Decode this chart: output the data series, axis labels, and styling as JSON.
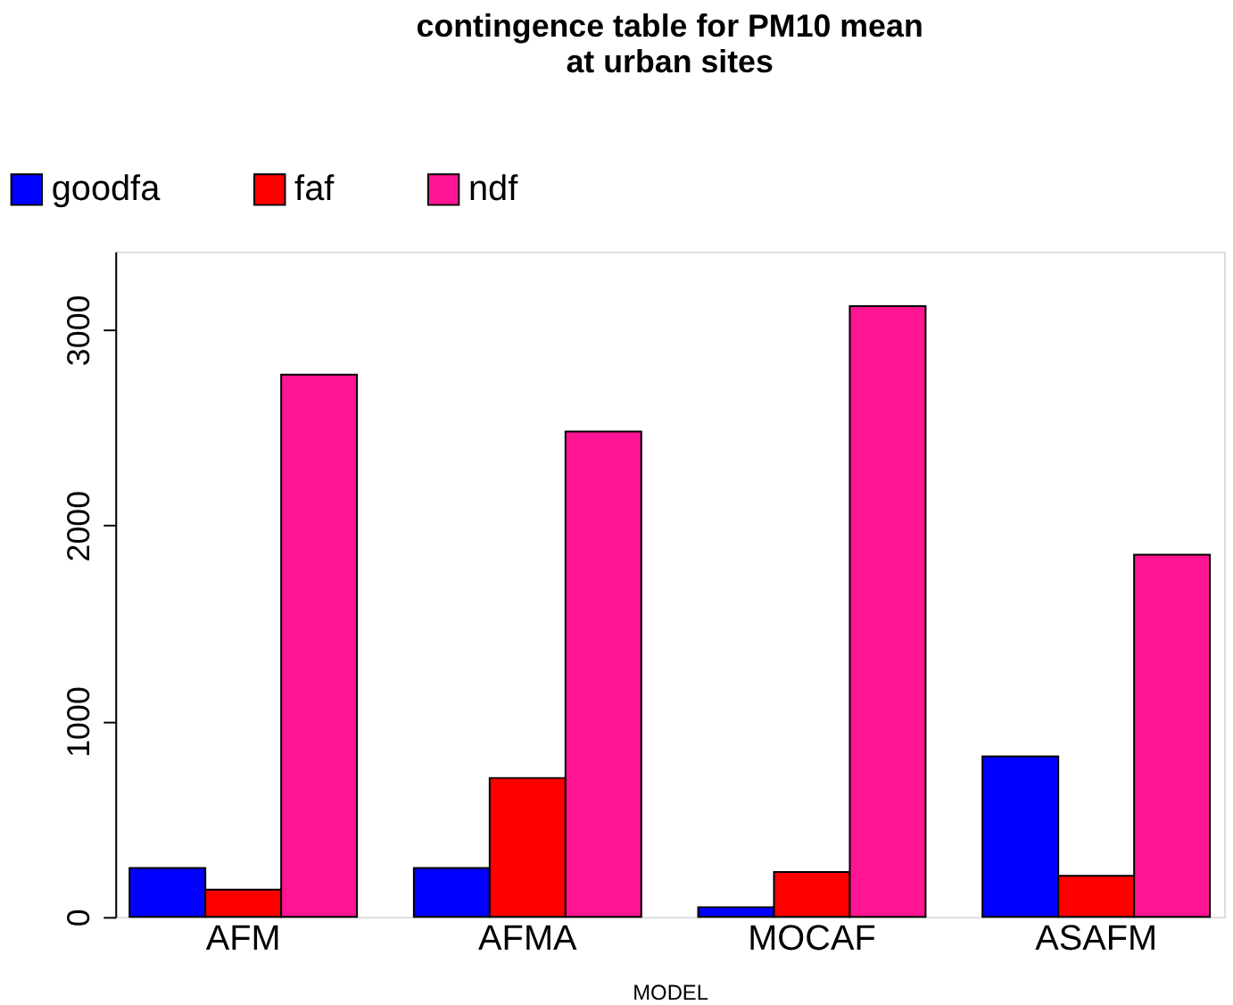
{
  "chart_data": {
    "type": "bar",
    "title": "contingence table for PM10 mean\nat urban sites",
    "xlabel": "MODEL",
    "categories": [
      "AFM",
      "AFMA",
      "MOCAF",
      "ASAFM"
    ],
    "series": [
      {
        "name": "goodfa",
        "color": "#0000ff",
        "values": [
          250,
          250,
          50,
          820
        ]
      },
      {
        "name": "faf",
        "color": "#ff0000",
        "values": [
          140,
          710,
          230,
          210
        ]
      },
      {
        "name": "ndf",
        "color": "#ff1493",
        "values": [
          2770,
          2480,
          3120,
          1850
        ]
      }
    ],
    "ylim": [
      0,
      3400
    ],
    "yticks": [
      0,
      1000,
      2000,
      3000
    ],
    "grid": false,
    "legend": "top left"
  }
}
